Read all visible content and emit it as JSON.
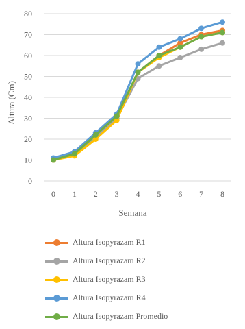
{
  "chart_data": {
    "type": "line",
    "title": "",
    "xlabel": "Semana",
    "ylabel": "Altura (Cm)",
    "x": [
      0,
      1,
      2,
      3,
      4,
      5,
      6,
      7,
      8
    ],
    "ylim": [
      0,
      80
    ],
    "yticks": [
      0,
      10,
      20,
      30,
      40,
      50,
      60,
      70,
      80
    ],
    "grid": true,
    "legend_position": "bottom",
    "series": [
      {
        "name": "Altura Isopyrazam R1",
        "color": "#ed7d31",
        "values": [
          10,
          13,
          21,
          30,
          52,
          60,
          66,
          70,
          72
        ]
      },
      {
        "name": "Altura Isopyrazam R2",
        "color": "#a5a5a5",
        "values": [
          10,
          13,
          21,
          30,
          49,
          55,
          59,
          63,
          66
        ]
      },
      {
        "name": "Altura Isopyrazam R3",
        "color": "#ffc000",
        "values": [
          10,
          12,
          20,
          29,
          52,
          59,
          64,
          69,
          71
        ]
      },
      {
        "name": "Altura Isopyrazam R4",
        "color": "#5b9bd5",
        "values": [
          11,
          14,
          23,
          32,
          56,
          64,
          68,
          73,
          76
        ]
      },
      {
        "name": "Altura Isopyrazam Promedio",
        "color": "#70ad47",
        "values": [
          10,
          13,
          22,
          31,
          52,
          60,
          64,
          69,
          71
        ]
      }
    ]
  }
}
